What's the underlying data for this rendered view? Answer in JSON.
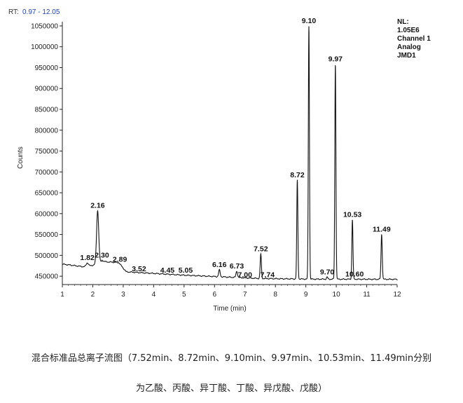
{
  "chart_data": {
    "type": "line",
    "rt_label": "RT:",
    "rt_range": "0.97 - 12.05",
    "xlabel": "Time (min)",
    "ylabel": "Counts",
    "xlim": [
      1,
      12
    ],
    "ylim": [
      430000,
      1060000
    ],
    "x_ticks": [
      1,
      2,
      3,
      4,
      5,
      6,
      7,
      8,
      9,
      10,
      11,
      12
    ],
    "y_ticks": [
      450000,
      500000,
      550000,
      600000,
      650000,
      700000,
      750000,
      800000,
      850000,
      900000,
      950000,
      1000000,
      1050000
    ],
    "info_lines": [
      "NL:",
      "1.05E6",
      "Channel 1",
      "Analog",
      "JMD1"
    ],
    "peaks": [
      {
        "rt": 1.82,
        "label": "1.82",
        "apex": 482000
      },
      {
        "rt": 2.16,
        "label": "2.16",
        "apex": 607000
      },
      {
        "rt": 2.3,
        "label": "2.30",
        "apex": 488000
      },
      {
        "rt": 2.89,
        "label": "2.89",
        "apex": 478000
      },
      {
        "rt": 3.52,
        "label": "3.52",
        "apex": 455000
      },
      {
        "rt": 4.45,
        "label": "4.45",
        "apex": 452000
      },
      {
        "rt": 5.05,
        "label": "5.05",
        "apex": 452000
      },
      {
        "rt": 6.16,
        "label": "6.16",
        "apex": 465000
      },
      {
        "rt": 6.73,
        "label": "6.73",
        "apex": 462000
      },
      {
        "rt": 7.0,
        "label": "7.00",
        "apex": 441000
      },
      {
        "rt": 7.52,
        "label": "7.52",
        "apex": 503000
      },
      {
        "rt": 7.74,
        "label": "7.74",
        "apex": 441000
      },
      {
        "rt": 8.72,
        "label": "8.72",
        "apex": 680000
      },
      {
        "rt": 9.1,
        "label": "9.10",
        "apex": 1050000
      },
      {
        "rt": 9.7,
        "label": "9.70",
        "apex": 448000
      },
      {
        "rt": 9.97,
        "label": "9.97",
        "apex": 958000
      },
      {
        "rt": 10.53,
        "label": "10.53",
        "apex": 585000
      },
      {
        "rt": 10.6,
        "label": "10.60",
        "apex": 443000
      },
      {
        "rt": 11.49,
        "label": "11.49",
        "apex": 550000
      }
    ]
  },
  "caption": {
    "line1": "混合标准品总离子流图（7.52min、8.72min、9.10min、9.97min、10.53min、11.49min分别",
    "line2": "为乙酸、丙酸、异丁酸、丁酸、异戊酸、戊酸）"
  }
}
